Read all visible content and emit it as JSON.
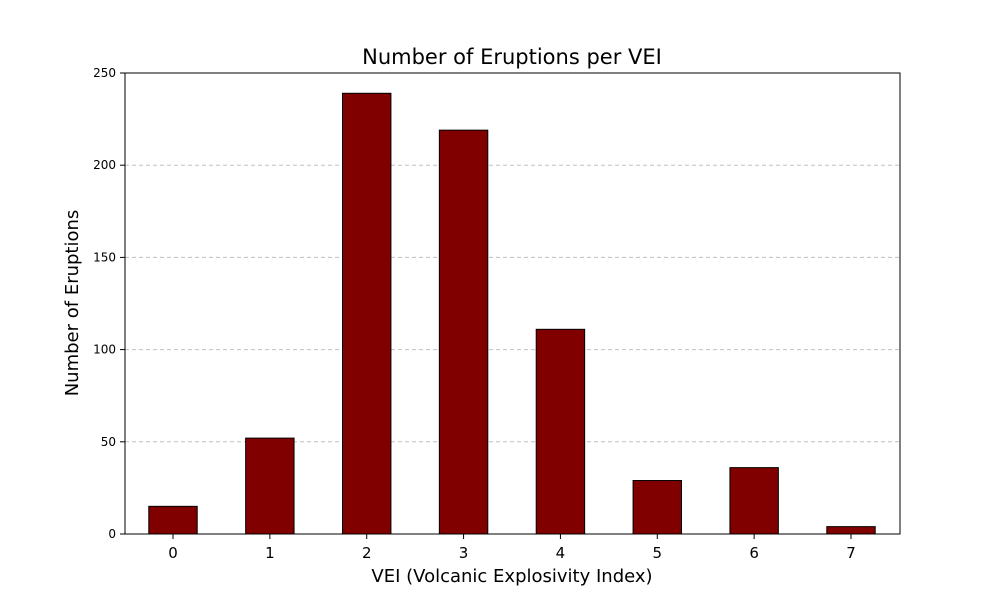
{
  "chart_data": {
    "type": "bar",
    "title": "Number of Eruptions per VEI",
    "xlabel": "VEI (Volcanic Explosivity Index)",
    "ylabel": "Number of Eruptions",
    "categories": [
      "0",
      "1",
      "2",
      "3",
      "4",
      "5",
      "6",
      "7"
    ],
    "values": [
      15,
      52,
      239,
      219,
      111,
      29,
      36,
      4
    ],
    "ylim": [
      0,
      250
    ],
    "yticks": [
      "0",
      "50",
      "100",
      "150",
      "200",
      "250"
    ],
    "grid": "y-dashed",
    "legend": "none",
    "colors": {
      "bar_fill": "#800000",
      "bar_edge": "#000000",
      "grid": "#c0c0c0"
    }
  }
}
